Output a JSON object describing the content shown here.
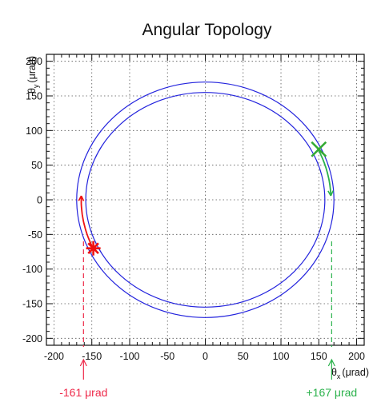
{
  "chart_data": {
    "type": "line",
    "title": "Angular Topology",
    "xlabel": "θx (μrad)",
    "ylabel": "θy (μrad)",
    "axis_label_symbol": "θ",
    "axis_label_units": "(μrad)",
    "x_subscript": "x",
    "y_subscript": "y",
    "xlim": [
      -210,
      210
    ],
    "ylim": [
      -210,
      210
    ],
    "x_ticks": [
      -200,
      -150,
      -100,
      -50,
      0,
      50,
      100,
      150,
      200
    ],
    "y_ticks": [
      -200,
      -150,
      -100,
      -50,
      0,
      50,
      100,
      150,
      200
    ],
    "x_tick_labels": [
      "-200",
      "-150",
      "-100",
      "-50",
      "0",
      "50",
      "100",
      "150",
      "200"
    ],
    "y_tick_labels": [
      "-200",
      "-150",
      "-100",
      "-50",
      "0",
      "50",
      "100",
      "150",
      "200"
    ],
    "grid": true,
    "series": [
      {
        "shape": "ellipse",
        "cx": 0,
        "cy": 0,
        "rx": 170,
        "ry": 170,
        "color": "#2323dd"
      },
      {
        "shape": "ellipse",
        "cx": 0,
        "cy": 0,
        "rx": 158,
        "ry": 155,
        "color": "#2323dd"
      }
    ],
    "markers": [
      {
        "symbol": "star",
        "x": -148,
        "y": -70,
        "color": "#ee1111"
      },
      {
        "symbol": "x",
        "x": 150,
        "y": 73,
        "color": "#33aa33"
      }
    ],
    "arcs": [
      {
        "color": "#ee1111",
        "r": 164,
        "from_deg": -154,
        "to_deg": -182
      },
      {
        "color": "#2bb24c",
        "r": 166,
        "from_deg": 27,
        "to_deg": 2
      }
    ],
    "annotations": [
      {
        "text": "-161 μrad",
        "x": -161,
        "color": "#ee2a4a"
      },
      {
        "text": "+167 μrad",
        "x": 167,
        "color": "#2bb24c"
      }
    ]
  }
}
